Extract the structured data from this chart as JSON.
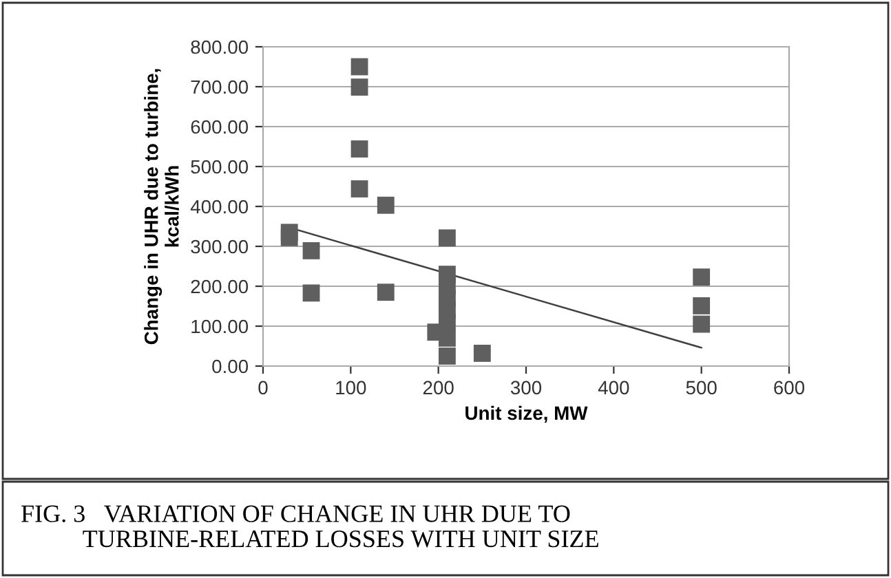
{
  "chart_data": {
    "type": "scatter",
    "xlabel": "Unit size, MW",
    "ylabel": "Change in UHR due to turbine,\nkcal/kWh",
    "series": [
      {
        "color": "#5f5f5f",
        "marker": "square",
        "x": [
          30,
          30,
          55,
          55,
          110,
          110,
          110,
          110,
          140,
          140,
          210,
          210,
          210,
          210,
          210,
          210,
          210,
          197,
          210,
          250,
          500,
          500,
          500
        ],
        "values": [
          335,
          322,
          289,
          183,
          750,
          699,
          544,
          444,
          403,
          185,
          321,
          230,
          200,
          170,
          140,
          110,
          70,
          85,
          25,
          32,
          223,
          151,
          105
        ]
      },
      {
        "type": "line",
        "color": "#404040",
        "marker": "none",
        "x": [
          30,
          500
        ],
        "values": [
          347,
          46
        ]
      }
    ],
    "xlim": [
      0,
      600
    ],
    "xticks": [
      0,
      100,
      200,
      300,
      400,
      500,
      600
    ],
    "ylim": [
      0,
      800
    ],
    "yticks": [
      {
        "value": 0,
        "label": "0.00"
      },
      {
        "value": 100,
        "label": "100.00"
      },
      {
        "value": 200,
        "label": "200.00"
      },
      {
        "value": 300,
        "label": "300.00"
      },
      {
        "value": 400,
        "label": "400.00"
      },
      {
        "value": 500,
        "label": "500.00"
      },
      {
        "value": 600,
        "label": "600.00"
      },
      {
        "value": 700,
        "label": "700.00"
      },
      {
        "value": 800,
        "label": "800.00"
      }
    ],
    "grid": "y",
    "legend": false,
    "annotations": [
      "FIG. 3   VARIATION OF CHANGE IN UHR DUE TO\n          TURBINE-RELATED LOSSES WITH UNIT SIZE"
    ]
  }
}
